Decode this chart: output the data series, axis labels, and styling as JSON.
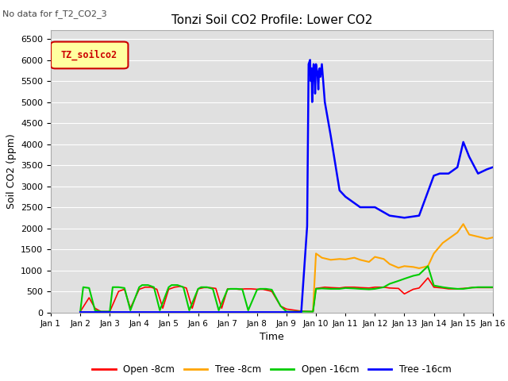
{
  "title": "Tonzi Soil CO2 Profile: Lower CO2",
  "no_data_text": "No data for f_T2_CO2_3",
  "legend_label_text": "TZ_soilco2",
  "xlabel": "Time",
  "ylabel": "Soil CO2 (ppm)",
  "ylim": [
    0,
    6700
  ],
  "yticks": [
    0,
    500,
    1000,
    1500,
    2000,
    2500,
    3000,
    3500,
    4000,
    4500,
    5000,
    5500,
    6000,
    6500
  ],
  "xlim_days": [
    0,
    15
  ],
  "xtick_labels": [
    "Jan 1",
    "Jan 2",
    "Jan 3",
    "Jan 4",
    "Jan 5",
    "Jan 6",
    "Jan 7",
    "Jan 8",
    "Jan 9",
    "Jan 10",
    "Jan 11",
    "Jan 12",
    "Jan 13",
    "Jan 14",
    "Jan 15",
    "Jan 16"
  ],
  "bg_color": "#e0e0e0",
  "line_colors": {
    "open8": "#ff0000",
    "tree8": "#ffa500",
    "open16": "#00cc00",
    "tree16": "#0000ff"
  },
  "legend_entries": [
    "Open -8cm",
    "Tree -8cm",
    "Open -16cm",
    "Tree -16cm"
  ],
  "open8_x": [
    1.0,
    1.3,
    1.5,
    1.7,
    2.0,
    2.3,
    2.5,
    2.7,
    3.0,
    3.2,
    3.4,
    3.6,
    3.8,
    4.0,
    4.2,
    4.4,
    4.6,
    4.8,
    5.0,
    5.2,
    5.4,
    5.6,
    5.8,
    6.0,
    6.2,
    6.4,
    6.6,
    6.8,
    7.0,
    7.2,
    7.5,
    7.8,
    8.0,
    8.5,
    8.9,
    9.0,
    9.3,
    9.5,
    9.8,
    10.0,
    10.3,
    10.5,
    10.8,
    11.0,
    11.3,
    11.5,
    11.8,
    12.0,
    12.3,
    12.5,
    12.8,
    13.0,
    13.3,
    13.5,
    13.8,
    14.0,
    14.3,
    14.5,
    14.8,
    15.0
  ],
  "open8_y": [
    20,
    350,
    100,
    20,
    20,
    500,
    550,
    100,
    550,
    600,
    600,
    550,
    100,
    550,
    600,
    620,
    580,
    100,
    560,
    590,
    590,
    570,
    100,
    560,
    560,
    550,
    560,
    560,
    550,
    550,
    500,
    150,
    80,
    30,
    20,
    570,
    600,
    590,
    580,
    600,
    600,
    590,
    580,
    600,
    600,
    580,
    570,
    440,
    550,
    580,
    820,
    600,
    580,
    560,
    560,
    570,
    590,
    590,
    590,
    590
  ],
  "tree8_x": [
    8.9,
    9.0,
    9.2,
    9.5,
    9.8,
    10.0,
    10.3,
    10.5,
    10.8,
    11.0,
    11.3,
    11.5,
    11.8,
    12.0,
    12.3,
    12.5,
    12.8,
    13.0,
    13.3,
    13.5,
    13.8,
    14.0,
    14.2,
    14.5,
    14.8,
    15.0
  ],
  "tree8_y": [
    50,
    1400,
    1300,
    1250,
    1270,
    1260,
    1300,
    1250,
    1200,
    1320,
    1270,
    1150,
    1060,
    1100,
    1080,
    1050,
    1100,
    1400,
    1650,
    1750,
    1900,
    2100,
    1850,
    1800,
    1750,
    1780
  ],
  "open16_x": [
    1.0,
    1.1,
    1.3,
    1.5,
    1.7,
    2.0,
    2.1,
    2.3,
    2.5,
    2.7,
    3.0,
    3.1,
    3.3,
    3.5,
    3.7,
    4.0,
    4.1,
    4.3,
    4.5,
    4.7,
    5.0,
    5.1,
    5.3,
    5.5,
    5.7,
    6.0,
    6.1,
    6.3,
    6.5,
    6.7,
    7.0,
    7.1,
    7.3,
    7.5,
    7.8,
    8.0,
    8.5,
    8.9,
    9.0,
    9.2,
    9.5,
    9.8,
    10.0,
    10.3,
    10.5,
    10.8,
    11.0,
    11.3,
    11.5,
    11.8,
    12.0,
    12.3,
    12.5,
    12.8,
    13.0,
    13.3,
    13.5,
    13.8,
    14.0,
    14.3,
    14.5,
    14.8,
    15.0
  ],
  "open16_y": [
    20,
    600,
    580,
    50,
    20,
    20,
    600,
    600,
    580,
    50,
    600,
    650,
    650,
    600,
    50,
    600,
    650,
    650,
    600,
    50,
    560,
    600,
    600,
    560,
    50,
    550,
    560,
    560,
    550,
    50,
    540,
    560,
    560,
    540,
    150,
    20,
    20,
    20,
    560,
    570,
    560,
    560,
    580,
    570,
    560,
    550,
    560,
    600,
    680,
    750,
    800,
    870,
    900,
    1100,
    640,
    600,
    580,
    560,
    560,
    590,
    600,
    600,
    600
  ],
  "tree16_x": [
    1.0,
    2.0,
    3.0,
    4.0,
    5.0,
    6.0,
    7.0,
    7.5,
    8.0,
    8.5,
    8.7,
    8.75,
    8.8,
    8.82,
    8.85,
    8.87,
    8.9,
    8.92,
    8.95,
    8.97,
    9.0,
    9.02,
    9.05,
    9.08,
    9.1,
    9.12,
    9.15,
    9.2,
    9.3,
    9.5,
    9.8,
    10.0,
    10.5,
    11.0,
    11.5,
    12.0,
    12.5,
    13.0,
    13.2,
    13.5,
    13.8,
    14.0,
    14.2,
    14.5,
    14.8,
    15.0
  ],
  "tree16_y": [
    5,
    5,
    5,
    5,
    5,
    5,
    5,
    5,
    5,
    5,
    2050,
    5900,
    6000,
    5500,
    5800,
    5000,
    5700,
    5900,
    5800,
    5200,
    5900,
    5800,
    5700,
    5300,
    5700,
    5800,
    5600,
    5900,
    5000,
    4200,
    2900,
    2750,
    2500,
    2500,
    2300,
    2250,
    2300,
    3250,
    3300,
    3300,
    3450,
    4050,
    3700,
    3300,
    3400,
    3450
  ]
}
